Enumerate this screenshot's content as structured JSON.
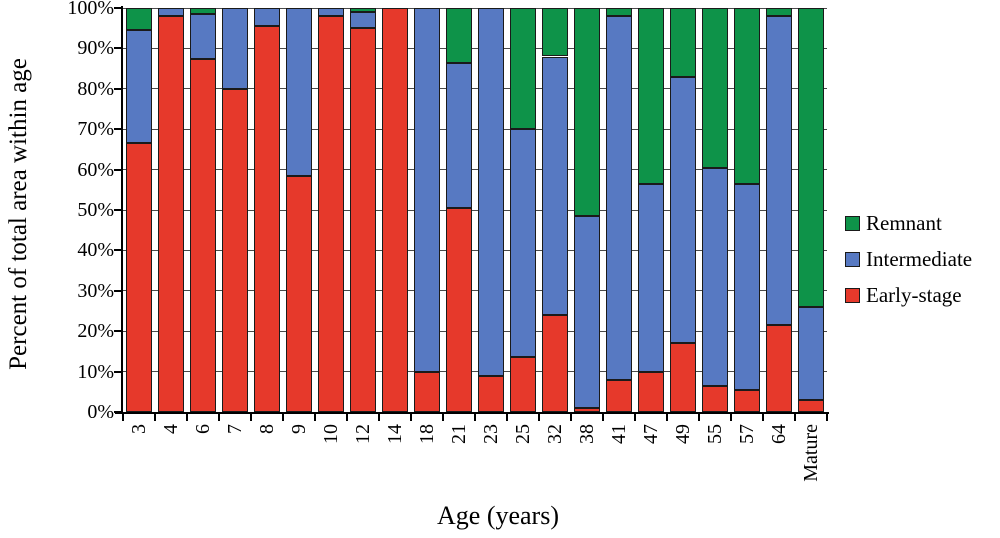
{
  "axes": {
    "y_title": "Percent of total area within age",
    "x_title": "Age (years)",
    "y_tick_labels": [
      "0%",
      "10%",
      "20%",
      "30%",
      "40%",
      "50%",
      "60%",
      "70%",
      "80%",
      "90%",
      "100%"
    ]
  },
  "legend": {
    "items": [
      {
        "label": "Remnant",
        "color": "#0e9349"
      },
      {
        "label": "Intermediate",
        "color": "#5779c2"
      },
      {
        "label": "Early-stage",
        "color": "#e6392b"
      }
    ]
  },
  "chart_data": {
    "type": "bar",
    "subtype": "stacked-100-percent",
    "title": "",
    "xlabel": "Age (years)",
    "ylabel": "Percent of total area within age",
    "ylim": [
      0,
      100
    ],
    "ytick_step": 10,
    "ytick_format": "percent",
    "grid": true,
    "legend_position": "right",
    "legend_order_top_to_bottom": [
      "Remnant",
      "Intermediate",
      "Early-stage"
    ],
    "categories": [
      "3",
      "4",
      "6",
      "7",
      "8",
      "9",
      "10",
      "12",
      "14",
      "18",
      "21",
      "23",
      "25",
      "32",
      "38",
      "41",
      "47",
      "49",
      "55",
      "57",
      "64",
      "Mature"
    ],
    "stack_order_bottom_to_top": [
      "Early-stage",
      "Intermediate",
      "Remnant"
    ],
    "series": [
      {
        "name": "Early-stage",
        "color": "#e6392b",
        "values": [
          66.5,
          98,
          87.5,
          80,
          95.5,
          58.5,
          98,
          95,
          100,
          10,
          50.5,
          9,
          13.5,
          24,
          1,
          8,
          10,
          17,
          6.5,
          5.5,
          21.5,
          3
        ]
      },
      {
        "name": "Intermediate",
        "color": "#5779c2",
        "values": [
          28,
          2,
          11,
          20,
          4.5,
          41.5,
          2,
          4,
          0,
          90,
          36,
          91,
          56.5,
          64,
          47.5,
          90,
          46.5,
          66,
          54,
          51,
          76.5,
          23
        ]
      },
      {
        "name": "Remnant",
        "color": "#0e9349",
        "values": [
          5.5,
          0,
          1.5,
          0,
          0,
          0,
          0,
          1,
          0,
          0,
          13.5,
          0,
          30,
          12,
          51.5,
          2,
          43.5,
          17,
          39.5,
          43.5,
          2,
          74
        ]
      }
    ]
  }
}
